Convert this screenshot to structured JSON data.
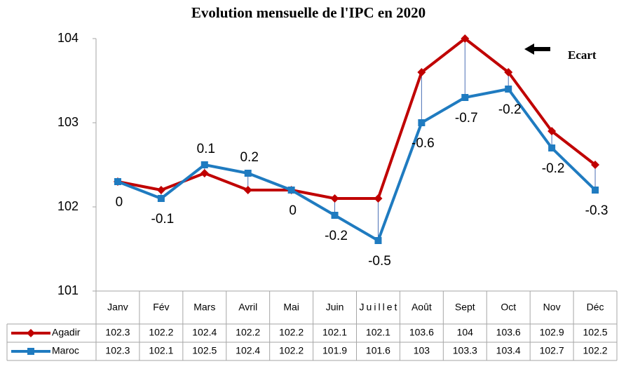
{
  "chart_data": {
    "type": "line",
    "title": "Evolution mensuelle de l'IPC en 2020",
    "categories": [
      "Janv",
      "Fév",
      "Mars",
      "Avril",
      "Mai",
      "Juin",
      "Juillet",
      "Août",
      "Sept",
      "Oct",
      "Nov",
      "Déc"
    ],
    "series": [
      {
        "name": "Agadir",
        "color": "#c00000",
        "marker": "diamond",
        "values": [
          102.3,
          102.2,
          102.4,
          102.2,
          102.2,
          102.1,
          102.1,
          103.6,
          104,
          103.6,
          102.9,
          102.5
        ]
      },
      {
        "name": "Maroc",
        "color": "#1f7bc0",
        "marker": "square",
        "values": [
          102.3,
          102.1,
          102.5,
          102.4,
          102.2,
          101.9,
          101.6,
          103,
          103.3,
          103.4,
          102.7,
          102.2
        ]
      }
    ],
    "ecart": {
      "name": "Ecart",
      "color": "#4a6fb5",
      "values": [
        0,
        -0.1,
        0.1,
        0.2,
        0,
        -0.2,
        -0.5,
        -0.6,
        -0.7,
        -0.2,
        -0.2,
        -0.3
      ]
    },
    "ylim": [
      101,
      104
    ],
    "yticks": [
      101,
      102,
      103,
      104
    ],
    "grid": false
  }
}
